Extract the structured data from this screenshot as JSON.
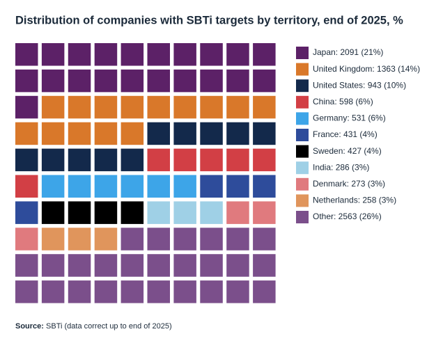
{
  "chart_data": {
    "type": "waffle",
    "title": "Distribution of companies with SBTi targets by territory, end of 2025, %",
    "grid_size": 10,
    "series": [
      {
        "label": "Japan: 2091 (21%)",
        "color": "#5c2167",
        "value": 21
      },
      {
        "label": "United Kingdom: 1363 (14%)",
        "color": "#d9782a",
        "value": 14
      },
      {
        "label": "United States: 943 (10%)",
        "color": "#13294b",
        "value": 10
      },
      {
        "label": "China: 598 (6%)",
        "color": "#d23f45",
        "value": 6
      },
      {
        "label": "Germany: 531 (6%)",
        "color": "#3da5e8",
        "value": 6
      },
      {
        "label": "France: 431 (4%)",
        "color": "#2e4c9b",
        "value": 4
      },
      {
        "label": "Sweden: 427 (4%)",
        "color": "#000000",
        "value": 4
      },
      {
        "label": "India: 286 (3%)",
        "color": "#9fd0e6",
        "value": 3
      },
      {
        "label": "Denmark: 273 (3%)",
        "color": "#e07a7e",
        "value": 3
      },
      {
        "label": "Netherlands: 258 (3%)",
        "color": "#e0955c",
        "value": 3
      },
      {
        "label": "Other: 2563 (26%)",
        "color": "#7b4f8b",
        "value": 26
      }
    ],
    "source_label": "Source:",
    "source_text": "SBTi (data correct up to end of 2025)"
  }
}
